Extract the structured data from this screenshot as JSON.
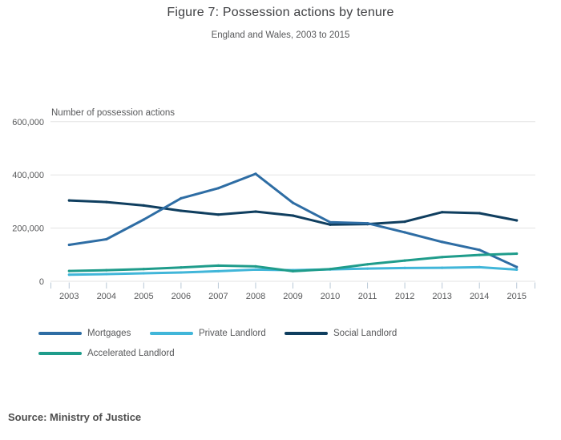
{
  "header": {
    "title": "Figure 7: Possession actions by tenure",
    "subtitle": "England and Wales, 2003 to 2015"
  },
  "source": {
    "label": "Source: Ministry of Justice"
  },
  "colors": {
    "grid": "#e3e3e3",
    "tick": "#b9c8d6",
    "axis_text": "#58595b",
    "title_text": "#3f4043",
    "source_text": "#4d4d4d"
  },
  "chart_data": {
    "type": "line",
    "title": "Figure 7: Possession actions by tenure",
    "subtitle": "England and Wales, 2003 to 2015",
    "xlabel": "",
    "ylabel": "Number of possession actions",
    "categories": [
      "2003",
      "2004",
      "2005",
      "2006",
      "2007",
      "2008",
      "2009",
      "2010",
      "2011",
      "2012",
      "2013",
      "2014",
      "2015"
    ],
    "ylim": [
      0,
      620000
    ],
    "yticks": [
      {
        "value": 0,
        "label": "0"
      },
      {
        "value": 200000,
        "label": "200,000"
      },
      {
        "value": 400000,
        "label": "400,000"
      },
      {
        "value": 600000,
        "label": "600,000"
      }
    ],
    "grid": true,
    "legend_position": "bottom-left",
    "series": [
      {
        "name": "Mortgages",
        "color": "#2e6da4",
        "values": [
          137000,
          158000,
          232000,
          312000,
          350000,
          404000,
          295000,
          222000,
          218000,
          184000,
          148000,
          118000,
          54000
        ]
      },
      {
        "name": "Private Landlord",
        "color": "#41b6d9",
        "values": [
          25000,
          27000,
          30000,
          33000,
          38000,
          44000,
          42000,
          45000,
          48000,
          50000,
          51000,
          53000,
          44000
        ]
      },
      {
        "name": "Social Landlord",
        "color": "#0f3e5f",
        "values": [
          304000,
          298000,
          285000,
          265000,
          251000,
          262000,
          247000,
          213000,
          215000,
          224000,
          260000,
          256000,
          229000
        ]
      },
      {
        "name": "Accelerated Landlord",
        "color": "#1f9c8b",
        "values": [
          39000,
          42000,
          46000,
          52000,
          59000,
          56000,
          38000,
          46000,
          64000,
          78000,
          91000,
          99000,
          104000
        ]
      }
    ]
  }
}
